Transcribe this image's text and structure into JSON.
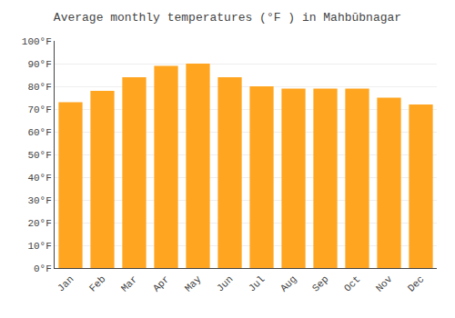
{
  "chart_data": {
    "type": "bar",
    "title": "Average monthly temperatures (°F ) in Mahbūbnagar",
    "categories": [
      "Jan",
      "Feb",
      "Mar",
      "Apr",
      "May",
      "Jun",
      "Jul",
      "Aug",
      "Sep",
      "Oct",
      "Nov",
      "Dec"
    ],
    "values": [
      73,
      78,
      84,
      89,
      90,
      84,
      80,
      79,
      79,
      79,
      75,
      72
    ],
    "color": "#FFA520",
    "ylim": [
      0,
      100
    ],
    "yticks": [
      {
        "value": 0,
        "label": "0°F"
      },
      {
        "value": 10,
        "label": "10°F"
      },
      {
        "value": 20,
        "label": "20°F"
      },
      {
        "value": 30,
        "label": "30°F"
      },
      {
        "value": 40,
        "label": "40°F"
      },
      {
        "value": 50,
        "label": "50°F"
      },
      {
        "value": 60,
        "label": "60°F"
      },
      {
        "value": 70,
        "label": "70°F"
      },
      {
        "value": 80,
        "label": "80°F"
      },
      {
        "value": 90,
        "label": "90°F"
      },
      {
        "value": 100,
        "label": "100°F"
      }
    ],
    "grid": true
  }
}
